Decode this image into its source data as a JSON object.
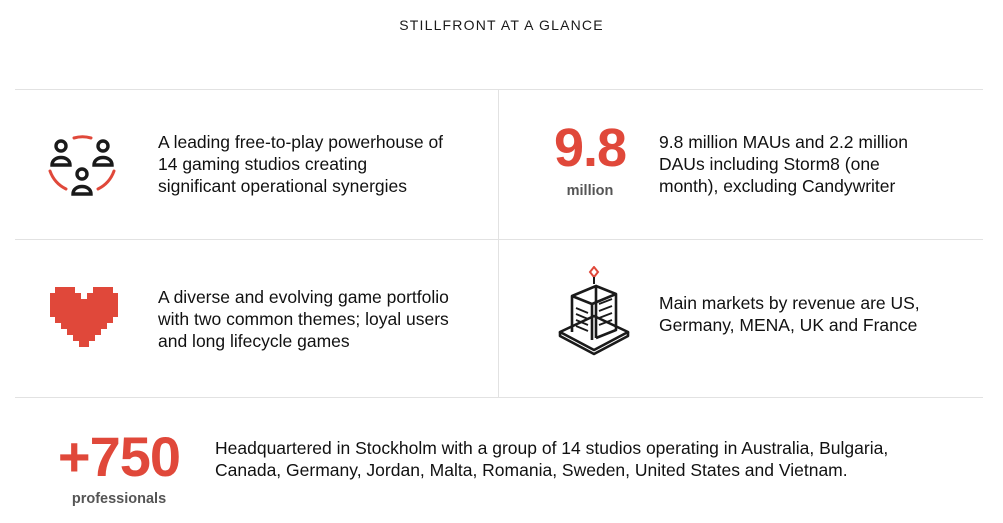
{
  "page_title": "STILLFRONT AT A GLANCE",
  "cells": {
    "studios": {
      "icon": "people-group-icon",
      "text": "A leading free-to-play powerhouse of 14 gaming studios creating significant operational synergies"
    },
    "users": {
      "stat_value": "9.8",
      "stat_unit": "million",
      "text": "9.8 million MAUs and 2.2 million DAUs including Storm8 (one month), excluding Candywriter"
    },
    "portfolio": {
      "icon": "pixel-heart-icon",
      "text": "A diverse and evolving game portfolio with two common themes; loyal users and long lifecycle games"
    },
    "markets": {
      "icon": "office-building-icon",
      "text": "Main markets by revenue are US, Germany, MENA, UK and France"
    },
    "employees": {
      "stat_value": "+750",
      "stat_unit": "professionals",
      "text": "Headquartered in Stockholm with a group of 14 studios operating in Australia, Bulgaria, Canada, Germany, Jordan, Malta, Romania, Sweden, United States and Vietnam."
    }
  },
  "colors": {
    "accent": "#e0483a",
    "text": "#111111",
    "divider": "#e2e2e2"
  }
}
